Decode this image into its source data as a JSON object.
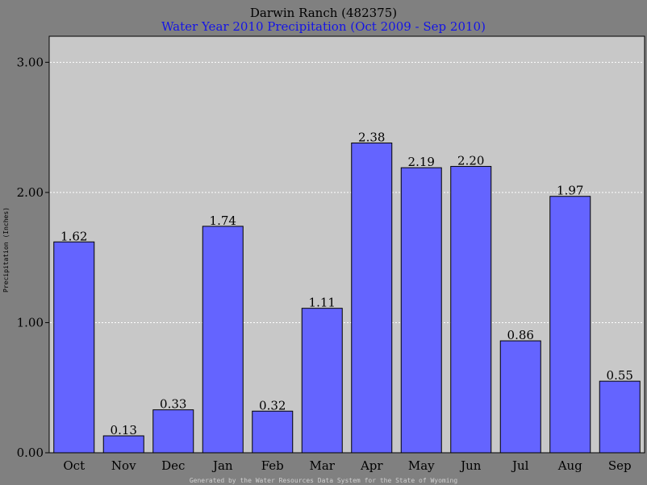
{
  "chart_data": {
    "type": "bar",
    "title": "Darwin Ranch (482375)",
    "subtitle": "Water Year 2010 Precipitation (Oct 2009 - Sep 2010)",
    "ylabel": "Precipitation (Inches)",
    "xlabel": "",
    "categories": [
      "Oct",
      "Nov",
      "Dec",
      "Jan",
      "Feb",
      "Mar",
      "Apr",
      "May",
      "Jun",
      "Jul",
      "Aug",
      "Sep"
    ],
    "values": [
      1.62,
      0.13,
      0.33,
      1.74,
      0.32,
      1.11,
      2.38,
      2.19,
      2.2,
      0.86,
      1.97,
      0.55
    ],
    "value_labels": [
      "1.62",
      "0.13",
      "0.33",
      "1.74",
      "0.32",
      "1.11",
      "2.38",
      "2.19",
      "2.20",
      "0.86",
      "1.97",
      "0.55"
    ],
    "ylim": [
      0,
      3.2
    ],
    "yticks": [
      0,
      1,
      2,
      3
    ],
    "ytick_labels": [
      "0.00",
      "1.00",
      "2.00",
      "3.00"
    ],
    "grid": true,
    "legend": "none",
    "footer": "Generated by the Water Resources Data System for the State of Wyoming",
    "colors": {
      "background": "#808080",
      "plot_area": "#c8c8c8",
      "bar_fill": "#6464ff",
      "bar_stroke": "#000000",
      "gridline": "#ffffff",
      "title": "#000000",
      "subtitle": "#1414e6",
      "footer": "#d0d0d0"
    }
  }
}
